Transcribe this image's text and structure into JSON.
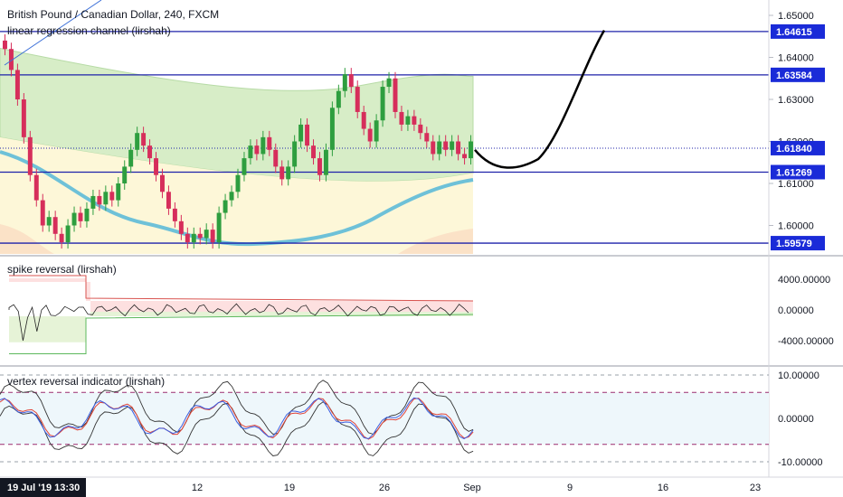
{
  "header": {
    "title": "British Pound / Canadian Dollar, 240, FXCM",
    "indicator": "linear regression channel (lirshah)"
  },
  "colors": {
    "accent_blue": "#1e22aa",
    "label_blue": "#1a2bd8",
    "up_candle": "#2e9e3f",
    "down_candle": "#d62e5b",
    "channel_upper_fill": "#d7edc7",
    "channel_mid_fill": "#fdf7d8",
    "channel_lower_fill": "#fbe2c7",
    "regression_line": "#6ec1d8",
    "projection": "#000000"
  },
  "main_axis": {
    "ticks": [
      "1.65000",
      "1.64000",
      "1.63000",
      "1.62000",
      "1.61000",
      "1.60000"
    ]
  },
  "levels": [
    {
      "label": "1.64615",
      "value": 1.64615
    },
    {
      "label": "1.63584",
      "value": 1.63584
    },
    {
      "label": "1.61840",
      "value": 1.6184,
      "dotted": true
    },
    {
      "label": "1.61269",
      "value": 1.61269
    },
    {
      "label": "1.59579",
      "value": 1.59579
    }
  ],
  "panes": {
    "spike": {
      "title": "spike reversal (lirshah)",
      "ticks": [
        "4000.00000",
        "0.00000",
        "-4000.00000"
      ]
    },
    "vertex": {
      "title": "vertex reversal indicator (lirshah)",
      "ticks": [
        "10.00000",
        "0.00000",
        "-10.00000"
      ]
    }
  },
  "time_axis": {
    "current": "19 Jul '19   13:30",
    "labels": [
      "12",
      "19",
      "26",
      "Sep",
      "9",
      "16",
      "23"
    ]
  },
  "chart_data": {
    "type": "candlestick",
    "title": "British Pound / Canadian Dollar, 240, FXCM",
    "ylim": [
      1.5945,
      1.6555
    ],
    "close_series": [
      1.642,
      1.637,
      1.63,
      1.621,
      1.612,
      1.606,
      1.6,
      1.602,
      1.598,
      1.596,
      1.6,
      1.603,
      1.601,
      1.604,
      1.607,
      1.605,
      1.608,
      1.606,
      1.61,
      1.614,
      1.618,
      1.622,
      1.619,
      1.616,
      1.612,
      1.608,
      1.604,
      1.601,
      1.598,
      1.596,
      1.598,
      1.597,
      1.599,
      1.596,
      1.603,
      1.606,
      1.608,
      1.612,
      1.616,
      1.619,
      1.617,
      1.621,
      1.618,
      1.614,
      1.611,
      1.614,
      1.62,
      1.624,
      1.619,
      1.616,
      1.612,
      1.618,
      1.628,
      1.632,
      1.636,
      1.633,
      1.627,
      1.623,
      1.62,
      1.625,
      1.633,
      1.635,
      1.627,
      1.624,
      1.626,
      1.624,
      1.622,
      1.62,
      1.617,
      1.62,
      1.618,
      1.62,
      1.617,
      1.616,
      1.62
    ],
    "levels": [
      1.64615,
      1.63584,
      1.6184,
      1.61269,
      1.59579
    ],
    "projection": {
      "from": 1.618,
      "low": 1.6145,
      "to": 1.646
    }
  }
}
